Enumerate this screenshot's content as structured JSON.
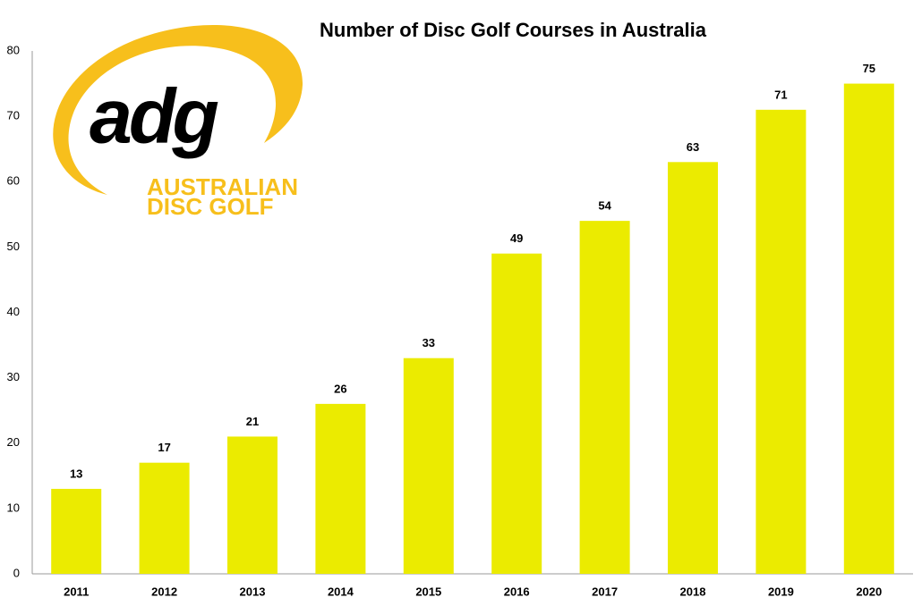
{
  "chart_data": {
    "type": "bar",
    "title": "Number of Disc Golf Courses in Australia",
    "categories": [
      "2011",
      "2012",
      "2013",
      "2014",
      "2015",
      "2016",
      "2017",
      "2018",
      "2019",
      "2020"
    ],
    "values": [
      13,
      17,
      21,
      26,
      33,
      49,
      54,
      63,
      71,
      75
    ],
    "color": "#ebeb00",
    "ylim": [
      0,
      80
    ],
    "yticks": [
      0,
      10,
      20,
      30,
      40,
      50,
      60,
      70,
      80
    ],
    "grid": false
  },
  "logo": {
    "mark": "adg",
    "name_lines": [
      "AUSTRALIAN",
      "DISC GOLF"
    ]
  }
}
